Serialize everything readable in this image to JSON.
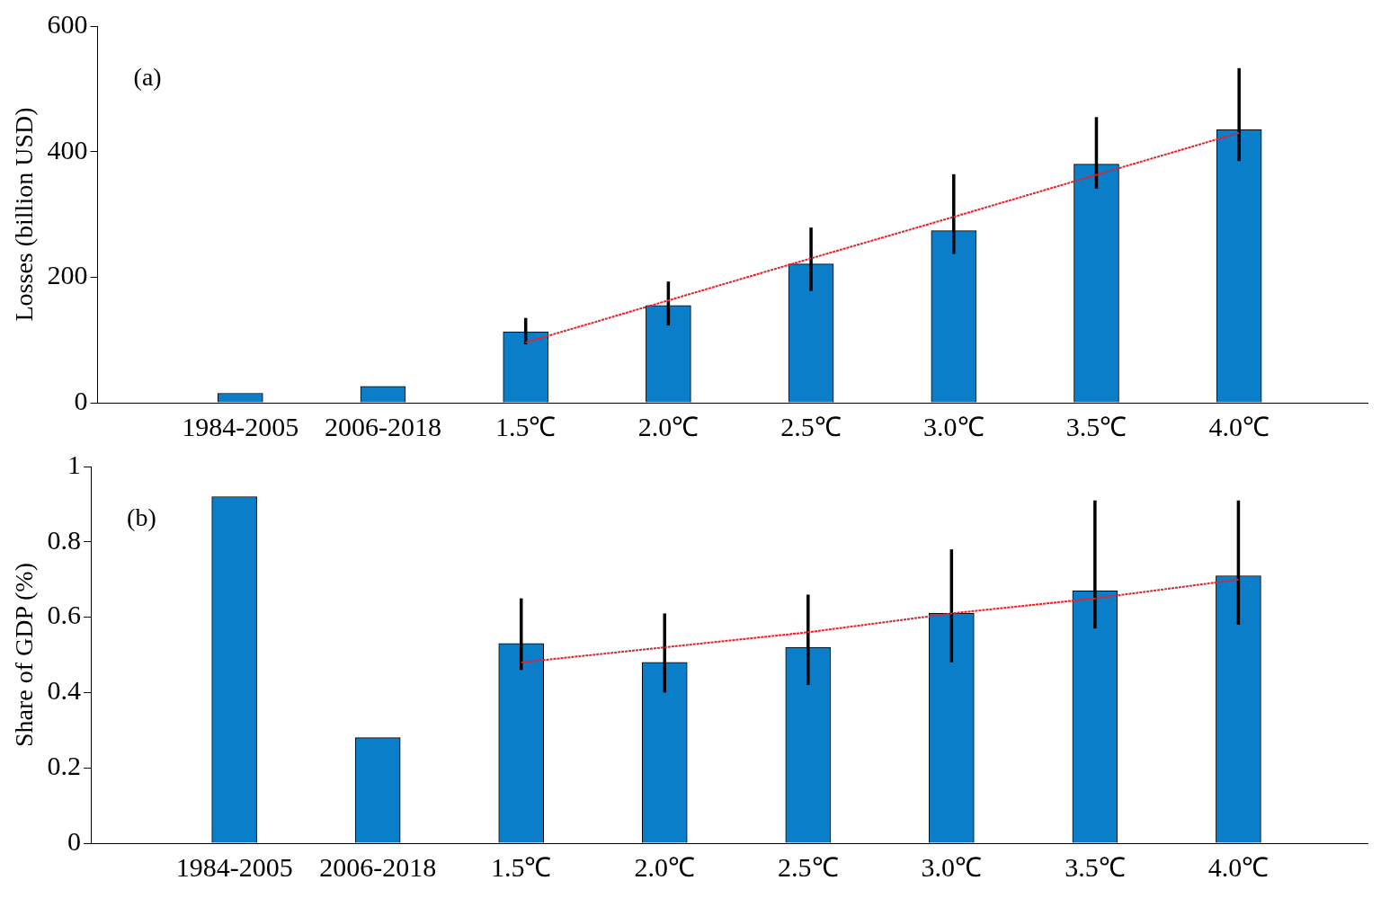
{
  "chart_data": [
    {
      "type": "bar",
      "ylabel": "Losses (billion USD)",
      "annotations": [
        "(a)"
      ],
      "categories": [
        "1984-2005",
        "2006-2018",
        "1.5℃",
        "2.0℃",
        "2.5℃",
        "3.0℃",
        "3.5℃",
        "4.0℃"
      ],
      "ylim": [
        0,
        600
      ],
      "yticks": [
        0,
        200,
        400,
        600
      ],
      "grid": false,
      "legend": false,
      "marker": "none",
      "series": [
        {
          "color": "#0a7ec8",
          "values": [
            15,
            26,
            113,
            155,
            221,
            274,
            380,
            435
          ],
          "errors": [
            null,
            null,
            [
              93,
              135
            ],
            [
              123,
              193
            ],
            [
              178,
              279
            ],
            [
              237,
              364
            ],
            [
              341,
              455
            ],
            [
              385,
              533
            ]
          ]
        },
        {
          "type": "line",
          "color": "#e8202a",
          "line_style": "dotted",
          "values": [
            null,
            null,
            96,
            163,
            230,
            296,
            363,
            430
          ]
        }
      ]
    },
    {
      "type": "bar",
      "ylabel": "Share of GDP (%)",
      "annotations": [
        "(b)"
      ],
      "categories": [
        "1984-2005",
        "2006-2018",
        "1.5℃",
        "2.0℃",
        "2.5℃",
        "3.0℃",
        "3.5℃",
        "4.0℃"
      ],
      "ylim": [
        0,
        1
      ],
      "yticks": [
        0,
        0.2,
        0.4,
        0.6,
        0.8,
        1
      ],
      "grid": false,
      "legend": false,
      "marker": "none",
      "series": [
        {
          "color": "#0a7ec8",
          "values": [
            0.92,
            0.28,
            0.53,
            0.48,
            0.52,
            0.61,
            0.67,
            0.71
          ],
          "errors": [
            null,
            null,
            [
              0.46,
              0.65
            ],
            [
              0.4,
              0.61
            ],
            [
              0.42,
              0.66
            ],
            [
              0.48,
              0.78
            ],
            [
              0.57,
              0.91
            ],
            [
              0.58,
              0.91
            ]
          ]
        },
        {
          "type": "line",
          "color": "#e8202a",
          "line_style": "dotted",
          "values": [
            null,
            null,
            0.48,
            0.52,
            0.56,
            0.61,
            0.65,
            0.7
          ]
        }
      ]
    }
  ]
}
